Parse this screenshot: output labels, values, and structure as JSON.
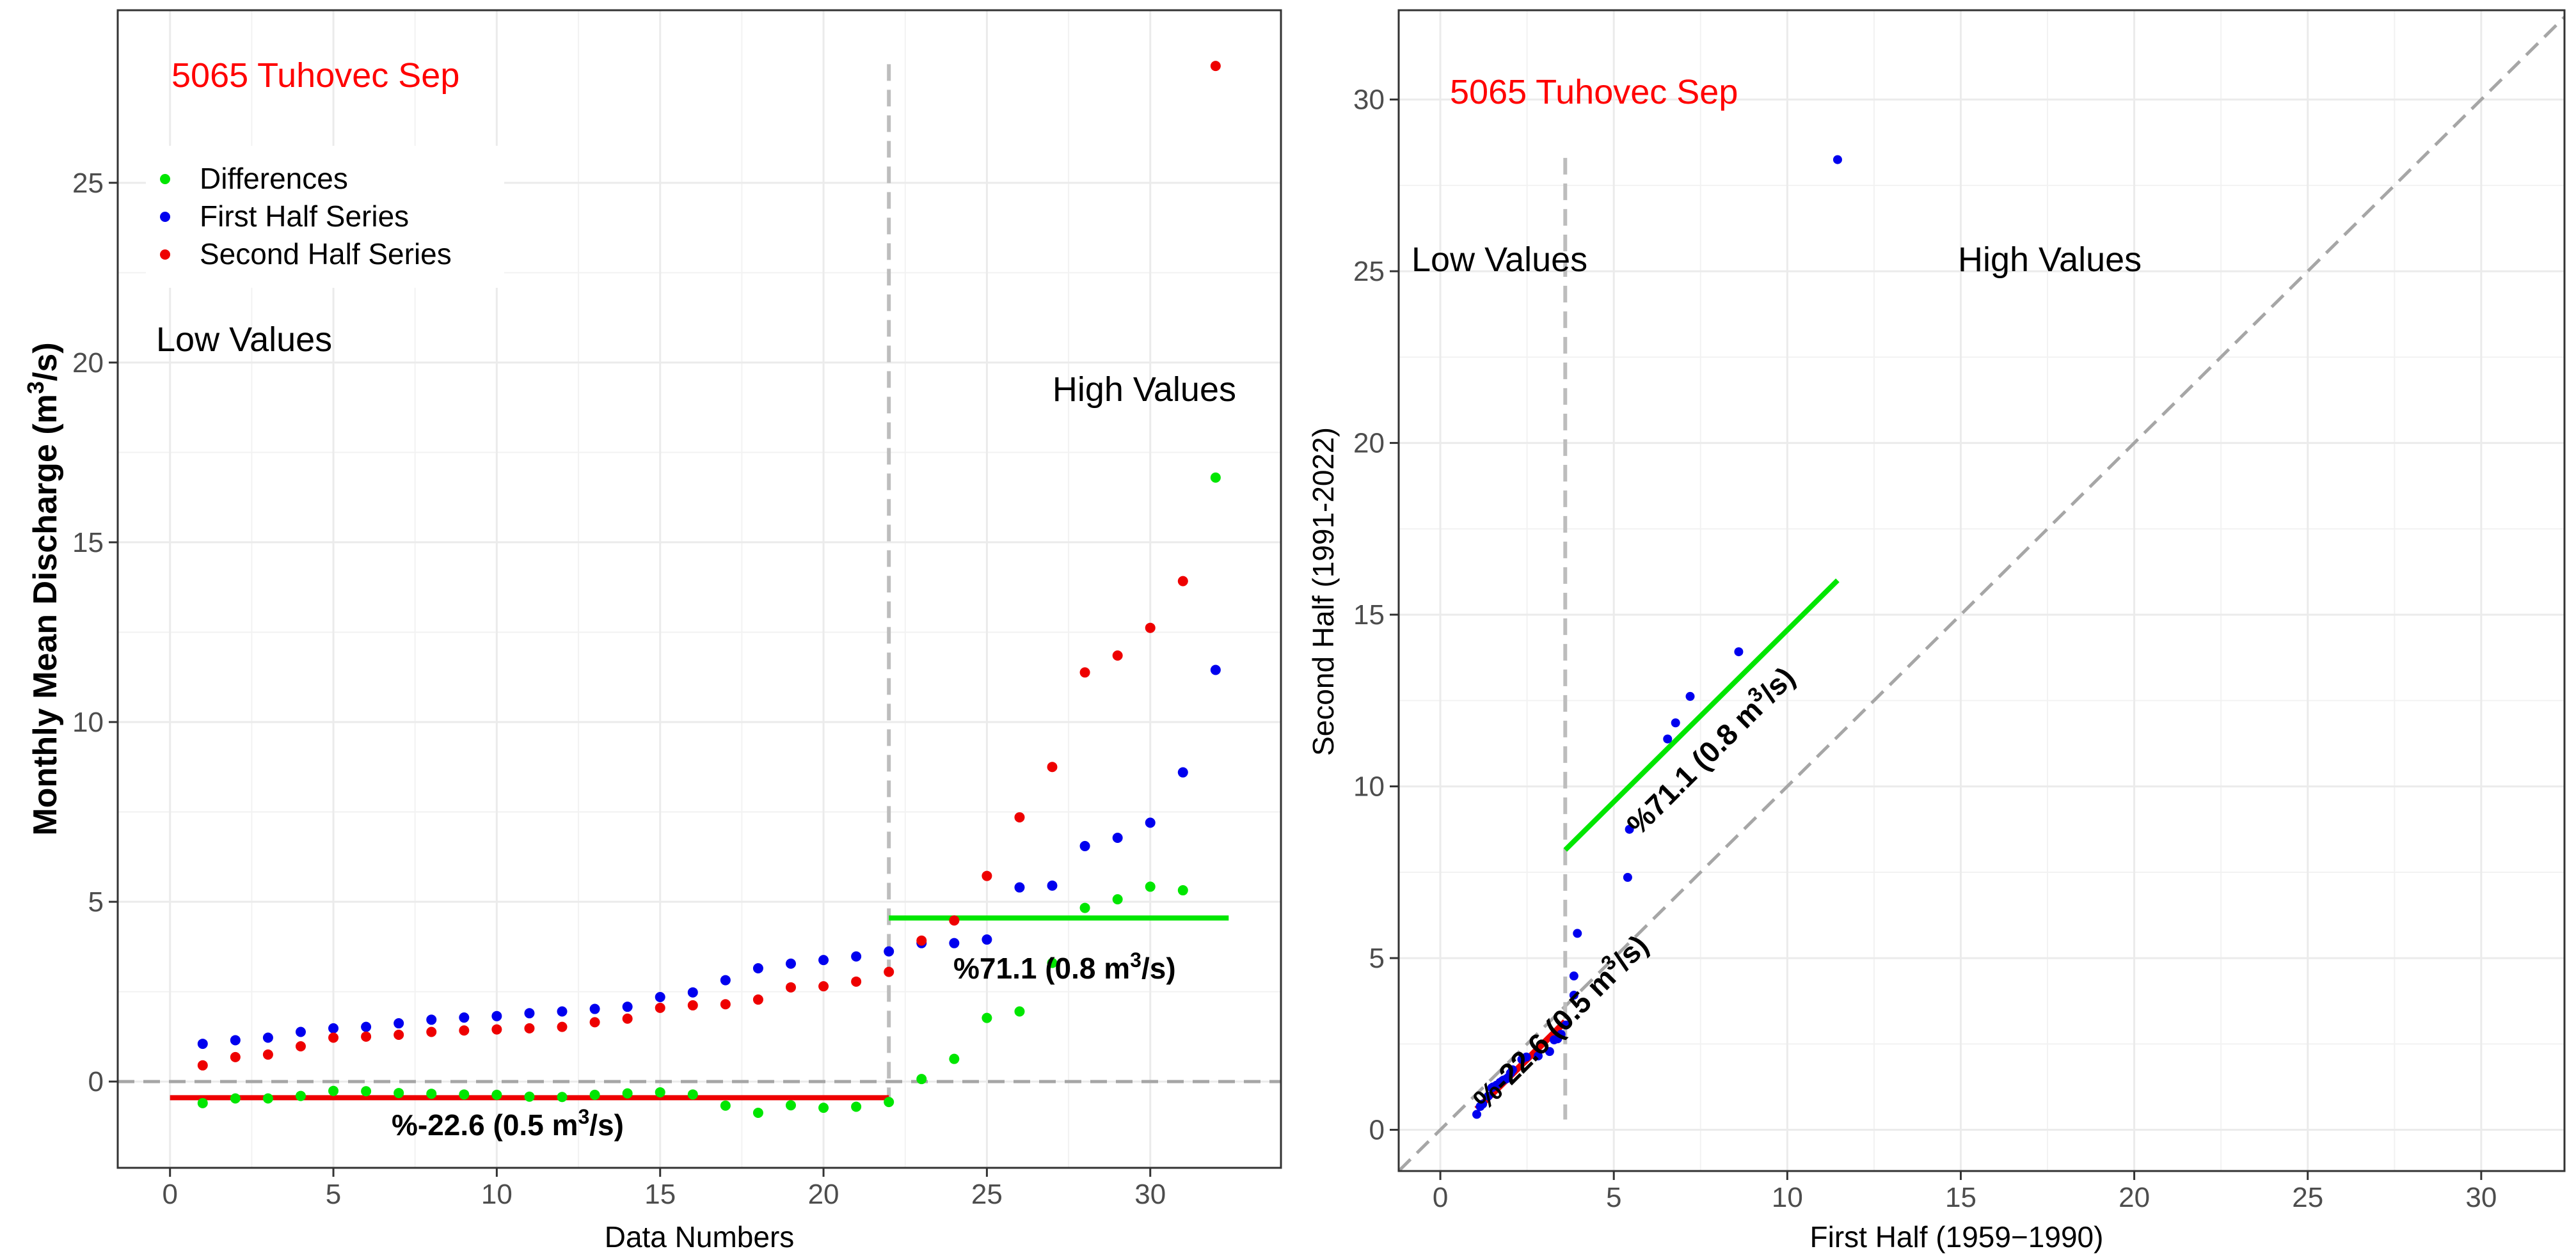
{
  "chart_data": [
    {
      "type": "scatter",
      "panel": "left",
      "title": "5065 Tuhovec Sep",
      "xlabel": "Data Numbers",
      "ylabel": "Monthly Mean Discharge",
      "ylabel_unit": "(m3/s)",
      "xlim": [
        -1.6,
        34
      ],
      "ylim": [
        -2.4,
        29.8
      ],
      "x_ticks": [
        0,
        5,
        10,
        15,
        20,
        25,
        30
      ],
      "y_ticks": [
        0,
        5,
        10,
        15,
        20,
        25
      ],
      "grid": true,
      "legend": "top-left",
      "legend_entries": [
        "Differences",
        "First Half Series",
        "Second Half Series"
      ],
      "colors": {
        "differences": "#00e600",
        "first": "#0000ee",
        "second": "#ee0000",
        "title": "#ff0000"
      },
      "x": [
        1,
        2,
        3,
        4,
        5,
        6,
        7,
        8,
        9,
        10,
        11,
        12,
        13,
        14,
        15,
        16,
        17,
        18,
        19,
        20,
        21,
        22,
        23,
        24,
        25,
        26,
        27,
        28,
        29,
        30,
        31,
        32
      ],
      "series": [
        {
          "name": "First Half Series",
          "values": [
            1.05,
            1.15,
            1.22,
            1.38,
            1.48,
            1.52,
            1.62,
            1.72,
            1.78,
            1.82,
            1.9,
            1.95,
            2.02,
            2.08,
            2.35,
            2.48,
            2.82,
            3.15,
            3.28,
            3.38,
            3.48,
            3.62,
            3.85,
            3.85,
            3.95,
            5.4,
            5.45,
            6.55,
            6.78,
            7.2,
            8.6,
            11.45
          ]
        },
        {
          "name": "Second Half Series",
          "values": [
            0.45,
            0.68,
            0.75,
            0.98,
            1.22,
            1.25,
            1.3,
            1.38,
            1.42,
            1.45,
            1.48,
            1.52,
            1.65,
            1.75,
            2.05,
            2.12,
            2.15,
            2.28,
            2.62,
            2.65,
            2.78,
            3.05,
            3.92,
            4.48,
            5.72,
            7.35,
            8.75,
            11.38,
            11.85,
            12.62,
            13.92,
            28.25
          ]
        },
        {
          "name": "Differences",
          "values": [
            -0.6,
            -0.47,
            -0.47,
            -0.4,
            -0.26,
            -0.27,
            -0.32,
            -0.34,
            -0.36,
            -0.37,
            -0.42,
            -0.43,
            -0.37,
            -0.33,
            -0.3,
            -0.36,
            -0.67,
            -0.87,
            -0.66,
            -0.73,
            -0.7,
            -0.57,
            0.07,
            0.63,
            1.77,
            1.95,
            3.3,
            4.83,
            5.07,
            5.42,
            5.32,
            16.8
          ]
        }
      ],
      "split_x": 22,
      "low_line": {
        "x": [
          0,
          22
        ],
        "y": -0.45,
        "label": "%-22.6 (0.5 m3/s)"
      },
      "high_line": {
        "x": [
          22,
          32.4
        ],
        "y": 4.55,
        "label": "%71.1 (0.8 m3/s)"
      },
      "region_labels": [
        "Low Values",
        "High Values"
      ]
    },
    {
      "type": "scatter",
      "panel": "right",
      "title": "5065 Tuhovec Sep",
      "xlabel": "First Half (1959−1990)",
      "ylabel": "Second Half (1991-2022)",
      "xlim": [
        -1.2,
        32.4
      ],
      "ylim": [
        -1.2,
        32.6
      ],
      "x_ticks": [
        0,
        5,
        10,
        15,
        20,
        25,
        30
      ],
      "y_ticks": [
        0,
        5,
        10,
        15,
        20,
        25,
        30
      ],
      "grid": true,
      "points_x": [
        1.05,
        1.15,
        1.22,
        1.38,
        1.48,
        1.52,
        1.62,
        1.72,
        1.78,
        1.82,
        1.9,
        1.95,
        2.02,
        2.08,
        2.35,
        2.48,
        2.82,
        3.15,
        3.28,
        3.38,
        3.48,
        3.62,
        3.85,
        3.85,
        3.95,
        5.4,
        5.45,
        6.55,
        6.78,
        7.2,
        8.6,
        11.45
      ],
      "points_y": [
        0.45,
        0.68,
        0.75,
        0.98,
        1.22,
        1.25,
        1.3,
        1.38,
        1.42,
        1.45,
        1.48,
        1.52,
        1.65,
        1.75,
        2.05,
        2.12,
        2.15,
        2.28,
        2.62,
        2.65,
        2.78,
        3.05,
        3.92,
        4.48,
        5.72,
        7.35,
        8.75,
        11.38,
        11.85,
        12.62,
        13.92,
        28.25
      ],
      "split_x": 3.6,
      "low_line": {
        "x": [
          1.05,
          3.6
        ],
        "y": [
          0.6,
          3.15
        ],
        "label": "%-22.6 (0.5 m3/s)"
      },
      "high_line": {
        "x": [
          3.6,
          11.45
        ],
        "y": [
          8.15,
          16.0
        ],
        "label": "%71.1 (0.8 m3/s)"
      },
      "region_labels": [
        "Low Values",
        "High Values"
      ]
    }
  ]
}
